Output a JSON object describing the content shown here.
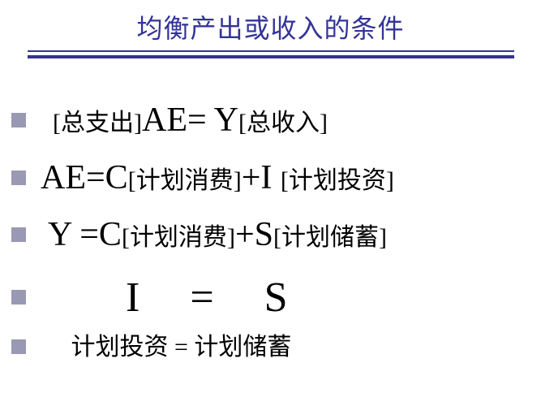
{
  "title": "均衡产出或收入的条件",
  "colors": {
    "title_color": "#333399",
    "underline_color": "#333399",
    "bullet_color": "#9999b3",
    "text_color": "#000000",
    "background": "#ffffff"
  },
  "fonts": {
    "title_size": 32,
    "latin_big": 42,
    "cjk_med": 30,
    "huge": 52
  },
  "lines": {
    "l1": {
      "pre_space": "  ",
      "br1_open": "[",
      "zh1": "总支出",
      "br1_close": "]",
      "eq_left": "AE= Y",
      "br2_open": "[",
      "zh2": "总收入",
      "br2_close": "]"
    },
    "l2": {
      "eq1": "AE=C",
      "br1_open": "[",
      "zh1": "计划消费",
      "br1_close": "]",
      "plus": "+",
      "eq2": "I ",
      "br2_open": "[",
      "zh2": "计划投资",
      "br2_close": "]"
    },
    "l3": {
      "pre_space": " ",
      "eq1": "Y =C",
      "br1_open": "[",
      "zh1": "计划消费",
      "br1_close": "]",
      "plus": "+",
      "eq2": "S",
      "br2_open": "[",
      "zh2": "计划储蓄",
      "br2_close": "]"
    },
    "l4": {
      "formula": "       I    =    S"
    },
    "l5": {
      "text": "     计划投资 = 计划储蓄"
    }
  }
}
